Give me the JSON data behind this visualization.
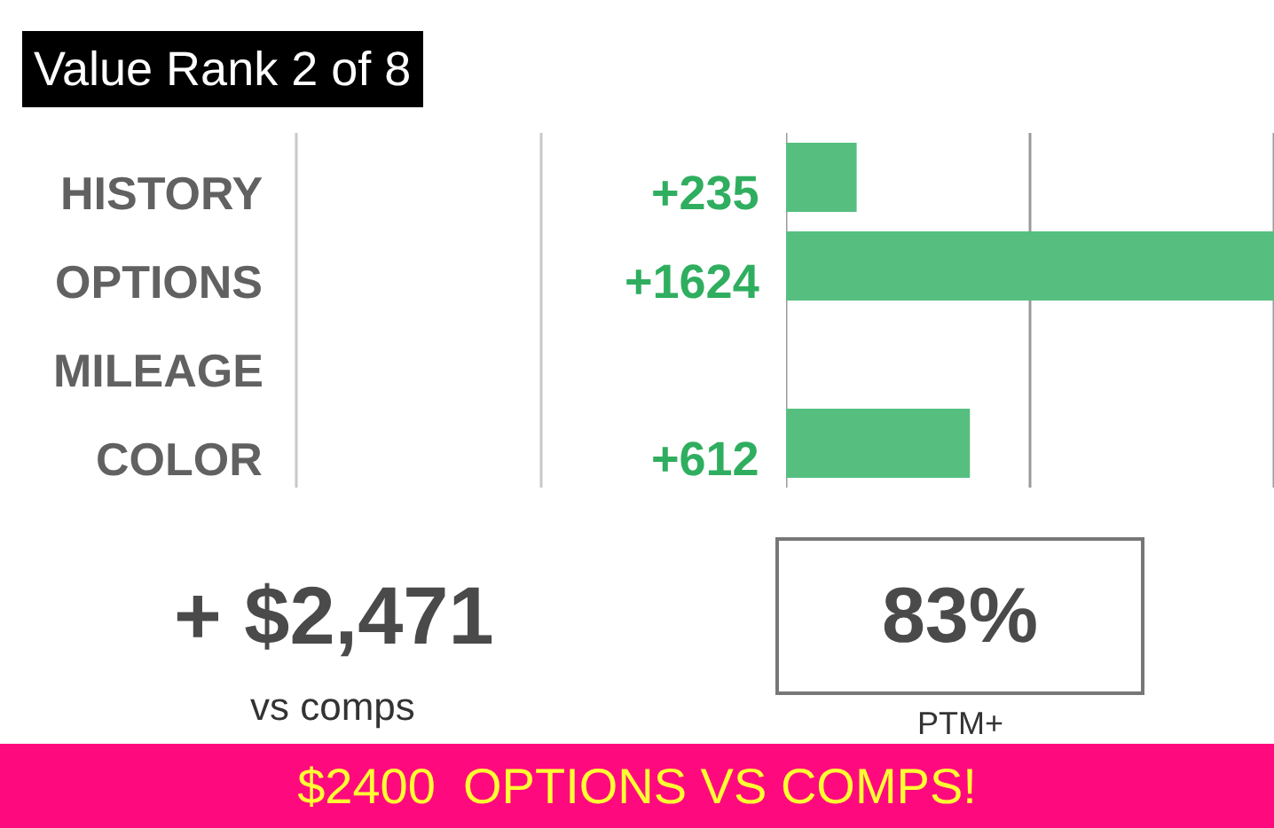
{
  "chart_data": {
    "type": "bar",
    "orientation": "horizontal",
    "title": "Value Rank 2 of 8",
    "categories": [
      "HISTORY",
      "OPTIONS",
      "MILEAGE",
      "COLOR"
    ],
    "series": [
      {
        "color": "#56bf80",
        "values": [
          235,
          1624,
          null,
          612
        ],
        "value_labels": [
          "+235",
          "+1624",
          null,
          "+612"
        ]
      }
    ],
    "xlim": [
      0,
      1624
    ],
    "xticks": [
      {
        "value": 0,
        "label": null
      },
      {
        "value": 812,
        "label": null
      },
      {
        "value": 1624,
        "label": null
      }
    ],
    "grid": "x",
    "tick_labels": "y",
    "annotations": [
      "+ $2,471",
      "vs comps",
      "83%",
      "PTM+",
      "$2400  OPTIONS VS COMPS!"
    ]
  }
}
